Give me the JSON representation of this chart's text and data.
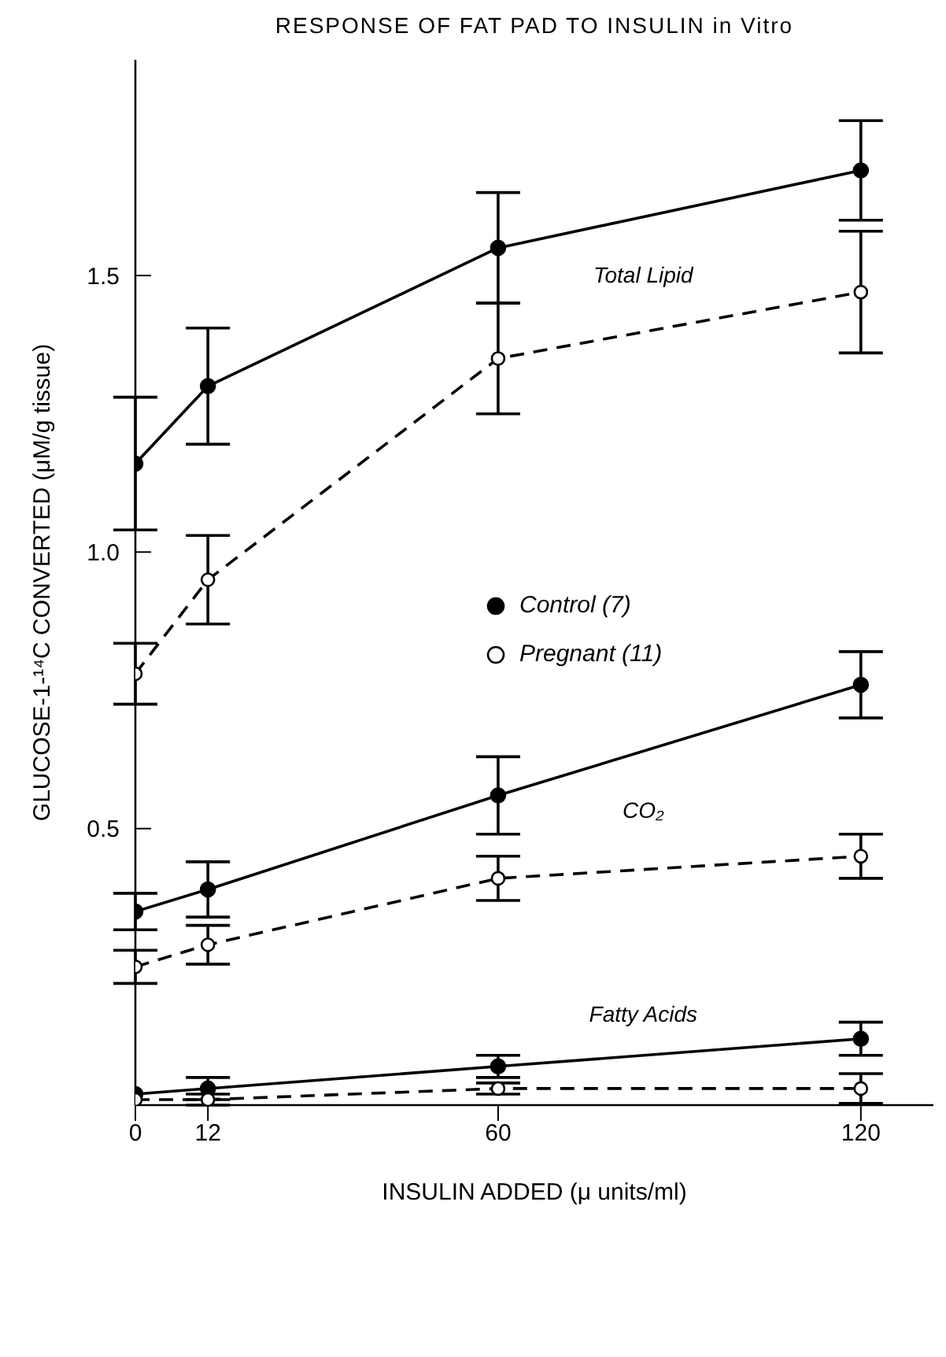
{
  "chart_data": {
    "type": "line",
    "title": "RESPONSE OF FAT PAD TO INSULIN in Vitro",
    "xlabel": "INSULIN ADDED (μ units/ml)",
    "ylabel": "GLUCOSE-1-¹⁴C CONVERTED (μM/g tissue)",
    "x": [
      0,
      12,
      60,
      120
    ],
    "series": [
      {
        "name": "Control (7)",
        "color": "#000000",
        "line_style": "solid",
        "values": [
          1.16,
          1.3,
          1.55,
          1.69
        ],
        "errors": [
          0.12,
          0.105,
          0.1,
          0.09
        ]
      },
      {
        "name": "Pregnant (11)",
        "color": "#000000",
        "line_style": "dashed",
        "values": [
          0.78,
          0.95,
          1.35,
          1.47
        ],
        "errors": [
          0.055,
          0.08,
          0.1,
          0.11
        ]
      },
      {
        "color": "#000000",
        "line_style": "solid",
        "values": [
          0.35,
          0.39,
          0.56,
          0.76
        ],
        "errors": [
          0.033,
          0.05,
          0.07,
          0.06
        ]
      },
      {
        "color": "#000000",
        "line_style": "dashed",
        "values": [
          0.25,
          0.29,
          0.41,
          0.45
        ],
        "errors": [
          0.03,
          0.035,
          0.04,
          0.04
        ]
      },
      {
        "color": "#000000",
        "line_style": "solid",
        "values": [
          0.02,
          0.03,
          0.07,
          0.12
        ],
        "errors": [
          null,
          0.02,
          0.02,
          0.03
        ]
      },
      {
        "color": "#000000",
        "line_style": "dashed",
        "values": [
          0.01,
          0.01,
          0.03,
          0.03
        ],
        "errors": [
          null,
          0.01,
          0.01,
          0.027
        ]
      }
    ],
    "annotations": [
      "Total Lipid",
      "CO₂",
      "Fatty Acids"
    ],
    "xlim": [
      0,
      132
    ],
    "xticks": [
      0,
      12,
      60,
      120
    ],
    "ylim": [
      0,
      1.89
    ],
    "yticks": [
      {
        "value": 0,
        "label": null
      },
      0.5,
      {
        "value": 1,
        "label": "1.0"
      },
      1.5
    ],
    "marker": "circle",
    "legend": "center",
    "grid": false
  }
}
